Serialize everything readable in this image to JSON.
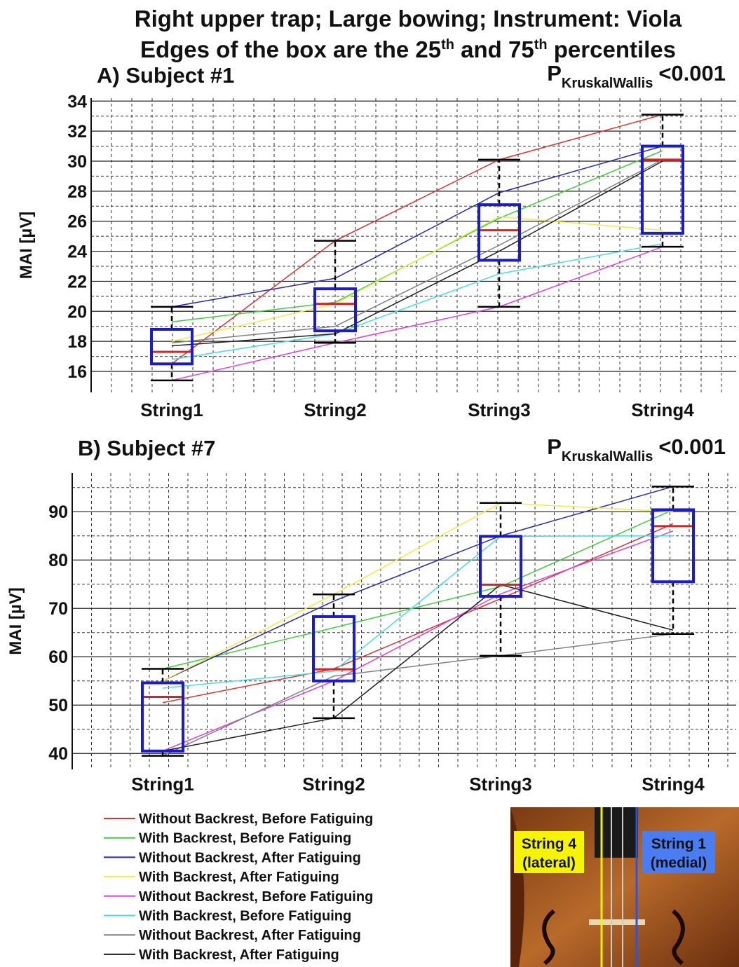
{
  "title": "Right upper trap; Large bowing; Instrument: Viola",
  "subtitle_parts": [
    {
      "text": "Edges of the box are the 25",
      "style": "normal"
    },
    {
      "text": "th",
      "style": "superscript"
    },
    {
      "text": " and 75",
      "style": "normal"
    },
    {
      "text": "th",
      "style": "superscript"
    },
    {
      "text": " percentiles",
      "style": "normal"
    }
  ],
  "chart_data": [
    {
      "type": "boxplot",
      "title": "A) Subject #1",
      "annotation": {
        "symbol": "P",
        "subscript": "KruskalWallis",
        "text": "<0.001"
      },
      "ylabel": "MAI [µV]",
      "categories": [
        "String1",
        "String2",
        "String3",
        "String4"
      ],
      "ylim": [
        14.6,
        34.2
      ],
      "yticks": [
        16,
        18,
        20,
        22,
        24,
        26,
        28,
        30,
        32,
        34
      ],
      "minor_yticks": [
        17,
        19,
        21,
        23,
        25,
        27,
        29,
        31,
        33
      ],
      "box_color": "#1a1ad2",
      "median_color": "#e02020",
      "boxes": [
        {
          "whisker_low": 15.4,
          "q1": 16.5,
          "median": 17.3,
          "q3": 18.8,
          "whisker_high": 20.3
        },
        {
          "whisker_low": 17.9,
          "q1": 18.7,
          "median": 20.5,
          "q3": 21.5,
          "whisker_high": 24.7
        },
        {
          "whisker_low": 20.3,
          "q1": 23.4,
          "median": 25.4,
          "q3": 27.1,
          "whisker_high": 30.1
        },
        {
          "whisker_low": 24.3,
          "q1": 25.2,
          "median": 30.1,
          "q3": 31.0,
          "whisker_high": 33.1
        }
      ],
      "series": [
        {
          "values": [
            16.5,
            24.7,
            30.1,
            33.1
          ]
        },
        {
          "values": [
            19.3,
            20.6,
            26.2,
            30.7
          ]
        },
        {
          "values": [
            20.3,
            22.2,
            27.9,
            31.0
          ]
        },
        {
          "values": [
            18.0,
            20.5,
            26.3,
            25.4
          ]
        },
        {
          "values": [
            15.4,
            17.9,
            20.3,
            24.3
          ]
        },
        {
          "values": [
            16.8,
            18.5,
            22.5,
            24.5
          ]
        },
        {
          "values": [
            17.9,
            19.0,
            24.4,
            30.1
          ]
        },
        {
          "values": [
            17.7,
            18.5,
            24.0,
            30.0
          ]
        }
      ]
    },
    {
      "type": "boxplot",
      "title": "B) Subject #7",
      "annotation": {
        "symbol": "P",
        "subscript": "KruskalWallis",
        "text": "<0.001"
      },
      "ylabel": "MAI [µV]",
      "categories": [
        "String1",
        "String2",
        "String3",
        "String4"
      ],
      "ylim": [
        36.7,
        98
      ],
      "yticks": [
        40,
        50,
        60,
        70,
        80,
        90
      ],
      "minor_yticks": [
        45,
        55,
        65,
        75,
        85,
        95
      ],
      "box_color": "#1a1ad2",
      "median_color": "#e02020",
      "boxes": [
        {
          "whisker_low": 39.5,
          "q1": 40.5,
          "median": 51.7,
          "q3": 54.6,
          "whisker_high": 57.5
        },
        {
          "whisker_low": 47.3,
          "q1": 55.0,
          "median": 57.4,
          "q3": 68.3,
          "whisker_high": 72.9
        },
        {
          "whisker_low": 60.2,
          "q1": 72.5,
          "median": 74.9,
          "q3": 84.9,
          "whisker_high": 91.8
        },
        {
          "whisker_low": 64.7,
          "q1": 75.5,
          "median": 87.0,
          "q3": 90.4,
          "whisker_high": 95.2
        }
      ],
      "series": [
        {
          "values": [
            50.5,
            57.5,
            72.0,
            87.5
          ]
        },
        {
          "values": [
            57.5,
            66.0,
            74.5,
            90.4
          ]
        },
        {
          "values": [
            55.0,
            71.5,
            85.0,
            95.2
          ]
        },
        {
          "values": [
            55.0,
            72.9,
            91.8,
            90.0
          ]
        },
        {
          "values": [
            40.5,
            55.0,
            73.0,
            86.0
          ]
        },
        {
          "values": [
            53.5,
            57.0,
            84.9,
            85.0
          ]
        },
        {
          "values": [
            39.5,
            56.0,
            60.2,
            64.7
          ]
        },
        {
          "values": [
            40.5,
            47.3,
            74.9,
            65.5
          ]
        }
      ]
    }
  ],
  "legend": [
    {
      "name": "Without Backrest, Before Fatiguing",
      "color": "#e03030"
    },
    {
      "name": "With Backrest, Before Fatiguing",
      "color": "#3ccf3c"
    },
    {
      "name": "Without Backrest, After Fatiguing",
      "color": "#2424c0"
    },
    {
      "name": "With Backrest, After Fatiguing",
      "color": "#eeee44"
    },
    {
      "name": "Without Backrest, Before Fatiguing",
      "color": "#e040e0"
    },
    {
      "name": "With Backrest, Before Fatiguing",
      "color": "#44e0e0"
    },
    {
      "name": "Without Backrest, After Fatiguing",
      "color": "#808080"
    },
    {
      "name": "With Backrest, After Fatiguing",
      "color": "#202020"
    }
  ],
  "violin_labels": [
    {
      "lines": [
        "String 4",
        "(lateral)"
      ]
    },
    {
      "lines": [
        "String 1",
        "(medial)"
      ]
    }
  ]
}
